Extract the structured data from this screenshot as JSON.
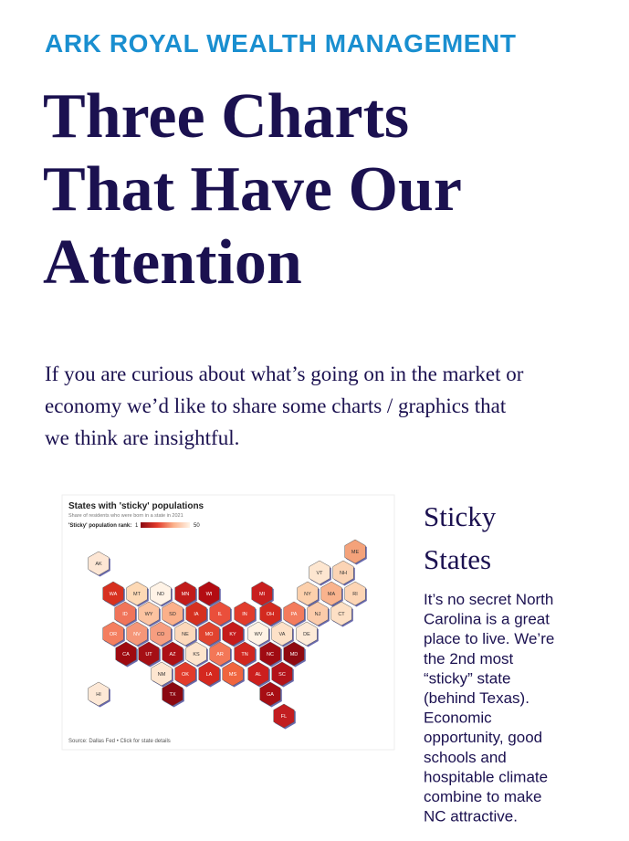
{
  "header": {
    "brand": "ARK ROYAL WEALTH MANAGEMENT",
    "title_lines": [
      "Three Charts",
      "That Have Our",
      "Attention"
    ],
    "intro_lines": [
      "If you are curious about what’s going on in the market or",
      "economy we’d like to share some charts / graphics that",
      "we think are insightful."
    ]
  },
  "figure": {
    "title": "States with 'sticky' populations",
    "subtitle": "Share of residents who were born in a state in 2021",
    "legend_label": "'Sticky' population rank:",
    "legend_min": 1,
    "legend_max": 50,
    "legend_colors": [
      "#8b0811",
      "#e23b2b",
      "#fbb08a",
      "#fff3e6"
    ],
    "source": "Source: Dallas Fed • Click for state details",
    "tiles": [
      {
        "state": "AK",
        "color": "#fde6d4"
      },
      {
        "state": "ME",
        "color": "#f4a27a"
      },
      {
        "state": "VT",
        "color": "#fde6d0"
      },
      {
        "state": "NH",
        "color": "#fbd4b5"
      },
      {
        "state": "WA",
        "color": "#d7301f"
      },
      {
        "state": "MT",
        "color": "#fdd9b5"
      },
      {
        "state": "ND",
        "color": "#fff3e6"
      },
      {
        "state": "MN",
        "color": "#c21b1a"
      },
      {
        "state": "WI",
        "color": "#b30c12"
      },
      {
        "state": "MI",
        "color": "#c81e1e"
      },
      {
        "state": "NY",
        "color": "#fcd0ac"
      },
      {
        "state": "MA",
        "color": "#f9b38d"
      },
      {
        "state": "RI",
        "color": "#fdd5b5"
      },
      {
        "state": "ID",
        "color": "#f0745a"
      },
      {
        "state": "WY",
        "color": "#fcc3a0"
      },
      {
        "state": "SD",
        "color": "#fbb08a"
      },
      {
        "state": "IA",
        "color": "#d5301f"
      },
      {
        "state": "IL",
        "color": "#ea4f3b"
      },
      {
        "state": "IN",
        "color": "#e13c2c"
      },
      {
        "state": "OH",
        "color": "#d3291f"
      },
      {
        "state": "PA",
        "color": "#f37b5d"
      },
      {
        "state": "NJ",
        "color": "#fccbaa"
      },
      {
        "state": "CT",
        "color": "#fde0c5"
      },
      {
        "state": "OR",
        "color": "#f47e5f"
      },
      {
        "state": "NV",
        "color": "#f59678"
      },
      {
        "state": "CO",
        "color": "#f79e80"
      },
      {
        "state": "NE",
        "color": "#fcd8bb"
      },
      {
        "state": "MO",
        "color": "#e1432f"
      },
      {
        "state": "KY",
        "color": "#c51b1c"
      },
      {
        "state": "WV",
        "color": "#fff2e4"
      },
      {
        "state": "VA",
        "color": "#fde1c8"
      },
      {
        "state": "DE",
        "color": "#fdead8"
      },
      {
        "state": "CA",
        "color": "#9e0a10"
      },
      {
        "state": "UT",
        "color": "#a50f15"
      },
      {
        "state": "AZ",
        "color": "#ad1016"
      },
      {
        "state": "KS",
        "color": "#fde4cc"
      },
      {
        "state": "AR",
        "color": "#f37757"
      },
      {
        "state": "TN",
        "color": "#d1261f"
      },
      {
        "state": "NC",
        "color": "#a00b12"
      },
      {
        "state": "MD",
        "color": "#8f0a12"
      },
      {
        "state": "NM",
        "color": "#fde6d0"
      },
      {
        "state": "OK",
        "color": "#e23b2b"
      },
      {
        "state": "LA",
        "color": "#d4281f"
      },
      {
        "state": "MS",
        "color": "#f0653f"
      },
      {
        "state": "AL",
        "color": "#cc1f1e"
      },
      {
        "state": "SC",
        "color": "#b3131a"
      },
      {
        "state": "HI",
        "color": "#fde8d6"
      },
      {
        "state": "TX",
        "color": "#8b0811"
      },
      {
        "state": "GA",
        "color": "#a70e14"
      },
      {
        "state": "FL",
        "color": "#c21d20"
      }
    ]
  },
  "article": {
    "heading_lines": [
      "Sticky",
      "States"
    ],
    "body_lines": [
      "It’s no secret North",
      "Carolina is a great",
      "place to live. We’re",
      "the 2nd most",
      "“sticky” state",
      "(behind Texas).",
      "Economic",
      "opportunity, good",
      "schools and",
      "hospitable climate",
      "combine to make",
      "NC attractive."
    ]
  }
}
